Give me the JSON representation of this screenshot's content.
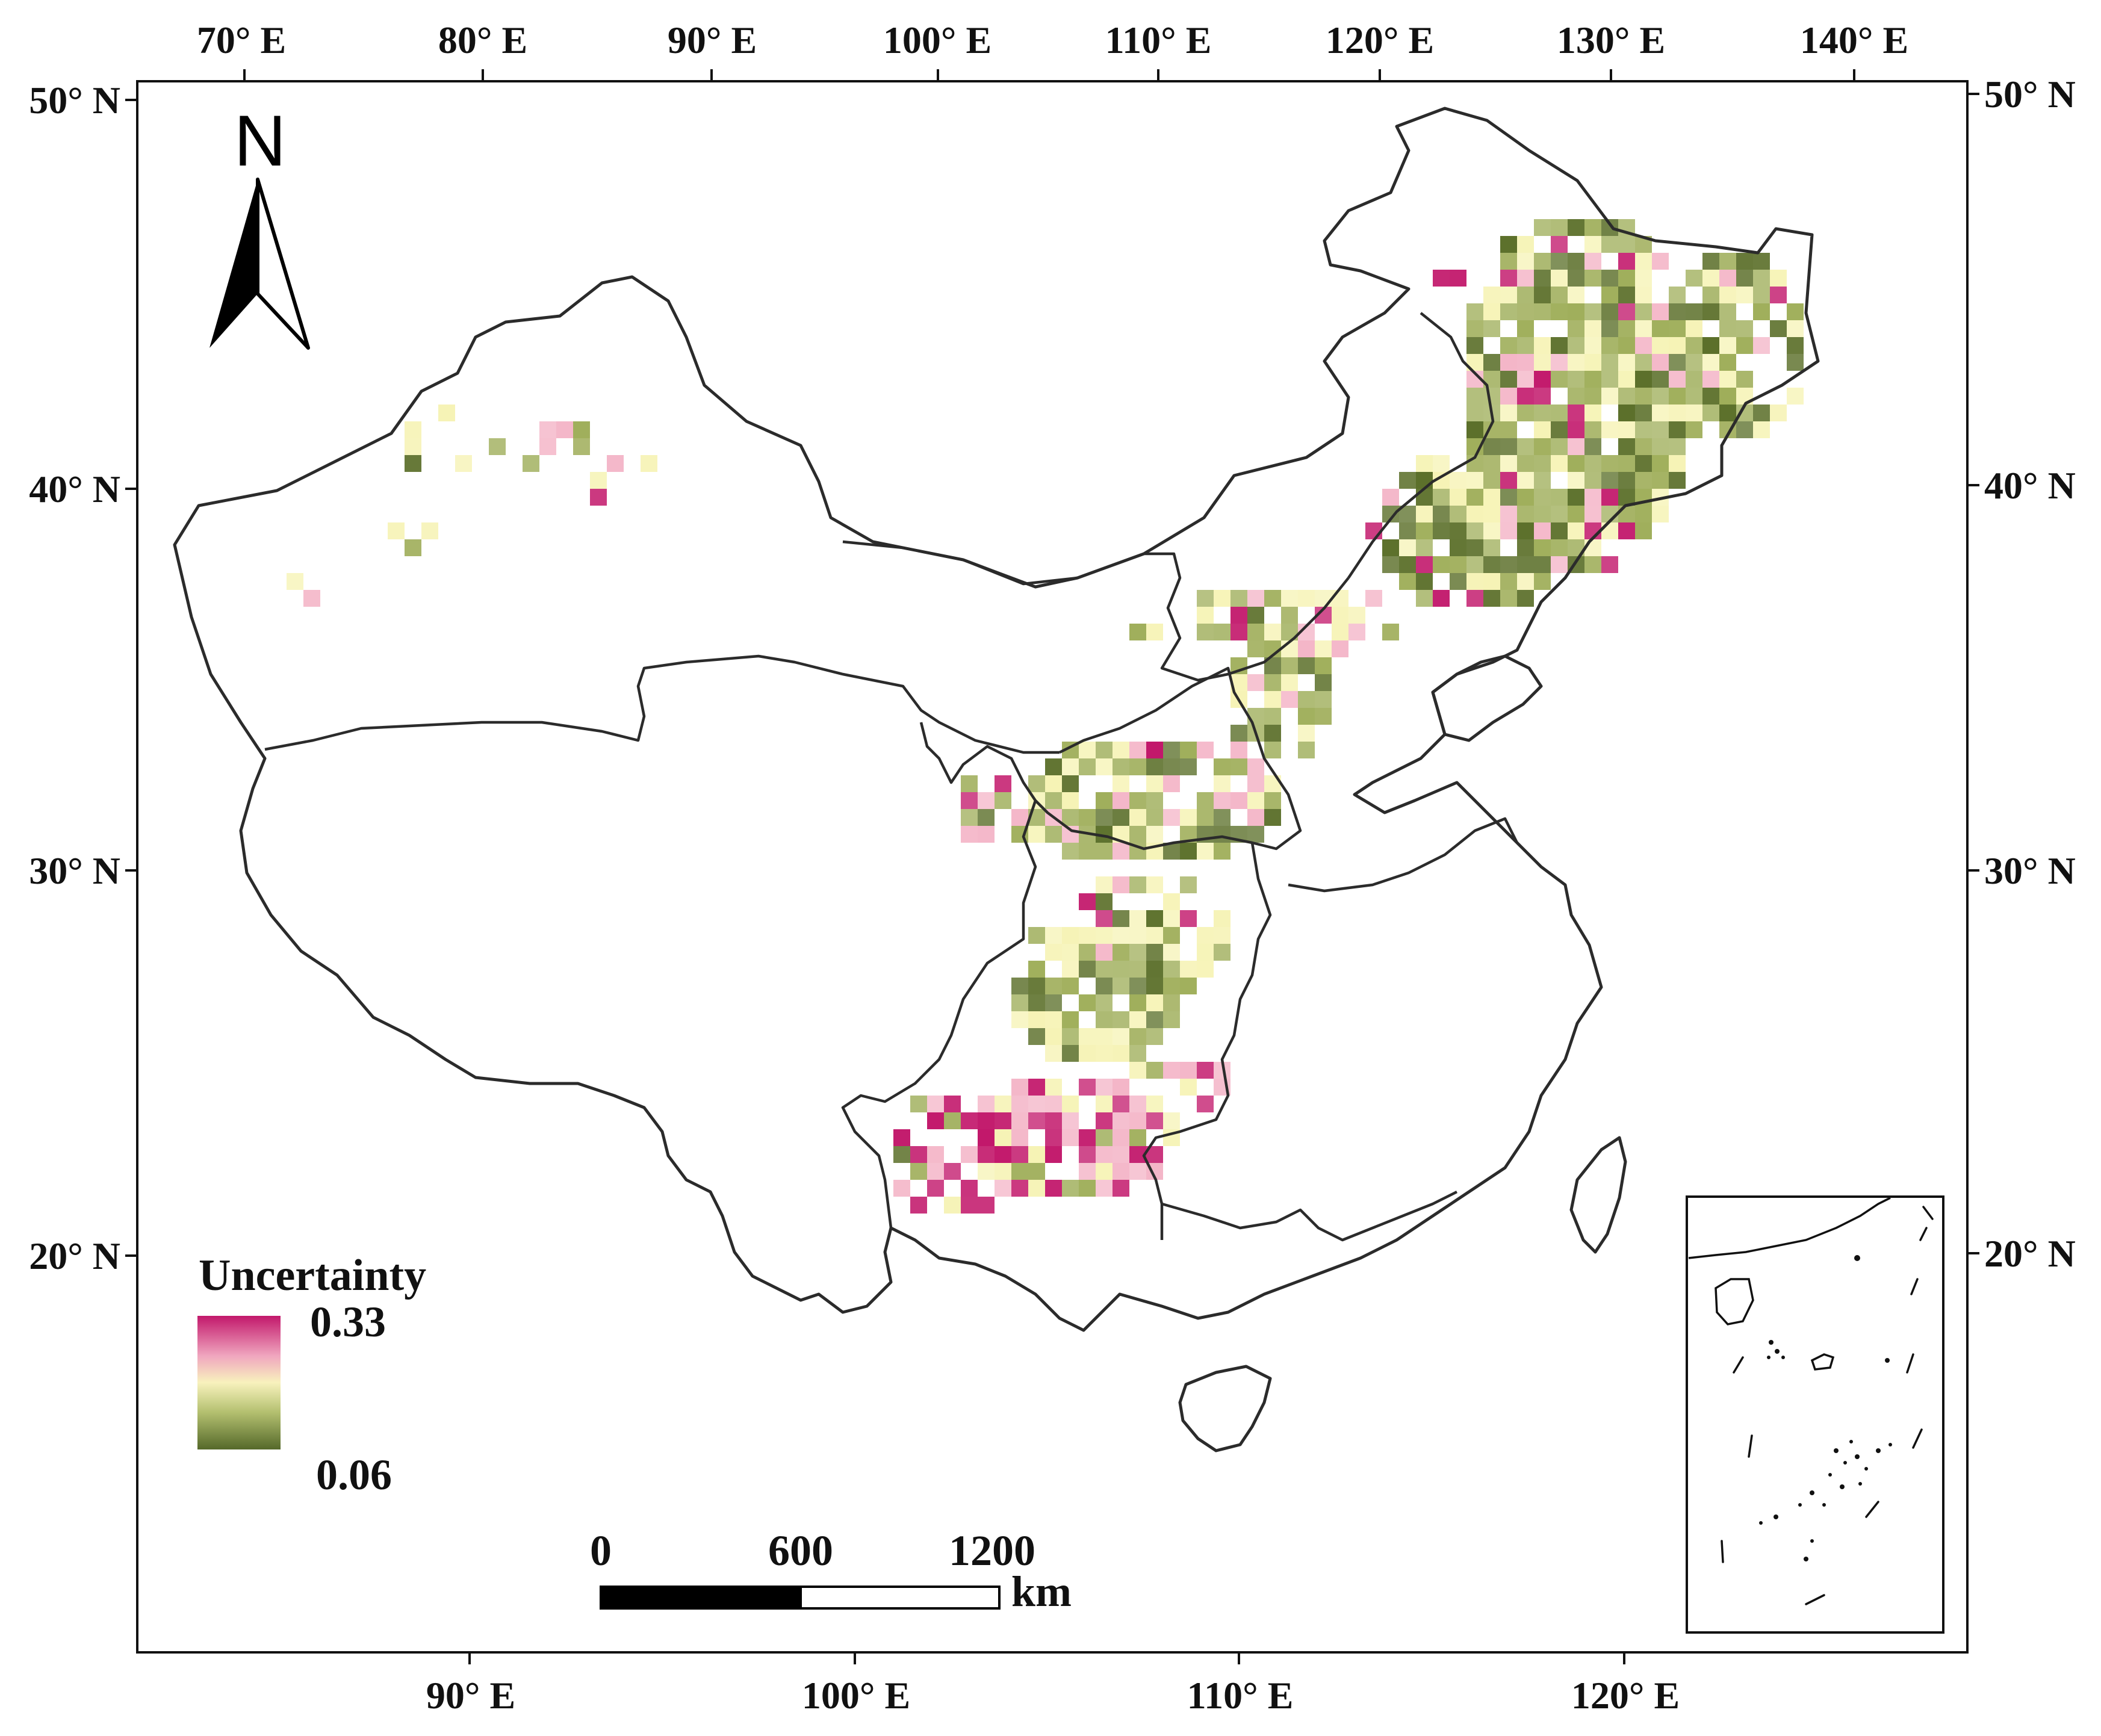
{
  "map": {
    "top_lon_labels": [
      "70° E",
      "80° E",
      "90° E",
      "100° E",
      "110° E",
      "120° E",
      "130° E",
      "140° E"
    ],
    "bottom_lon_labels": [
      "90° E",
      "100° E",
      "110° E",
      "120° E"
    ],
    "left_lat_labels": [
      "50° N",
      "40° N",
      "30° N",
      "20° N"
    ],
    "right_lat_labels": [
      "50° N",
      "40° N",
      "30° N",
      "20° N"
    ],
    "north_arrow_label": "N",
    "legend": {
      "title": "Uncertainty",
      "max_label": "0.33",
      "min_label": "0.06",
      "colors": [
        "#c2186b",
        "#f4b6c8",
        "#f6f3b5",
        "#9fae5a",
        "#5a6e28"
      ]
    },
    "scale_bar": {
      "labels": [
        "0",
        "600",
        "1200"
      ],
      "unit": "km"
    },
    "has_inset": true
  }
}
